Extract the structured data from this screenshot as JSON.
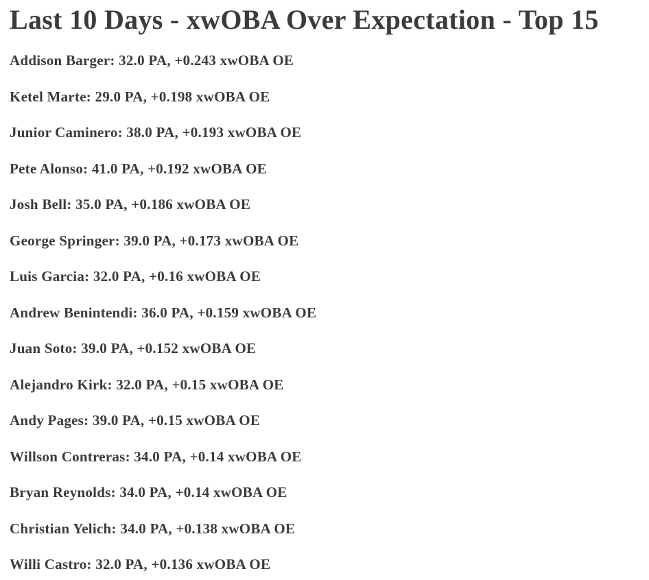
{
  "theme": {
    "text_color": "#3b3b3b",
    "background_color": "#ffffff"
  },
  "page": {
    "title": "Last 10 Days - xwOBA Over Expectation - Top 15"
  },
  "players": [
    {
      "name": "Addison Barger",
      "pa": "32.0",
      "xwoba_oe": "+0.243",
      "display": "Addison Barger: 32.0 PA, +0.243 xwOBA OE"
    },
    {
      "name": "Ketel Marte",
      "pa": "29.0",
      "xwoba_oe": "+0.198",
      "display": "Ketel Marte: 29.0 PA, +0.198 xwOBA OE"
    },
    {
      "name": "Junior Caminero",
      "pa": "38.0",
      "xwoba_oe": "+0.193",
      "display": "Junior Caminero: 38.0 PA, +0.193 xwOBA OE"
    },
    {
      "name": "Pete Alonso",
      "pa": "41.0",
      "xwoba_oe": "+0.192",
      "display": "Pete Alonso: 41.0 PA, +0.192 xwOBA OE"
    },
    {
      "name": "Josh Bell",
      "pa": "35.0",
      "xwoba_oe": "+0.186",
      "display": "Josh Bell: 35.0 PA, +0.186 xwOBA OE"
    },
    {
      "name": "George Springer",
      "pa": "39.0",
      "xwoba_oe": "+0.173",
      "display": "George Springer: 39.0 PA, +0.173 xwOBA OE"
    },
    {
      "name": "Luis Garcia",
      "pa": "32.0",
      "xwoba_oe": "+0.16",
      "display": "Luis Garcia: 32.0 PA, +0.16 xwOBA OE"
    },
    {
      "name": "Andrew Benintendi",
      "pa": "36.0",
      "xwoba_oe": "+0.159",
      "display": "Andrew Benintendi: 36.0 PA, +0.159 xwOBA OE"
    },
    {
      "name": "Juan Soto",
      "pa": "39.0",
      "xwoba_oe": "+0.152",
      "display": "Juan Soto: 39.0 PA, +0.152 xwOBA OE"
    },
    {
      "name": "Alejandro Kirk",
      "pa": "32.0",
      "xwoba_oe": "+0.15",
      "display": "Alejandro Kirk: 32.0 PA, +0.15 xwOBA OE"
    },
    {
      "name": "Andy Pages",
      "pa": "39.0",
      "xwoba_oe": "+0.15",
      "display": "Andy Pages: 39.0 PA, +0.15 xwOBA OE"
    },
    {
      "name": "Willson Contreras",
      "pa": "34.0",
      "xwoba_oe": "+0.14",
      "display": "Willson Contreras: 34.0 PA, +0.14 xwOBA OE"
    },
    {
      "name": "Bryan Reynolds",
      "pa": "34.0",
      "xwoba_oe": "+0.14",
      "display": "Bryan Reynolds: 34.0 PA, +0.14 xwOBA OE"
    },
    {
      "name": "Christian Yelich",
      "pa": "34.0",
      "xwoba_oe": "+0.138",
      "display": "Christian Yelich: 34.0 PA, +0.138 xwOBA OE"
    },
    {
      "name": "Willi Castro",
      "pa": "32.0",
      "xwoba_oe": "+0.136",
      "display": "Willi Castro: 32.0 PA, +0.136 xwOBA OE"
    }
  ]
}
